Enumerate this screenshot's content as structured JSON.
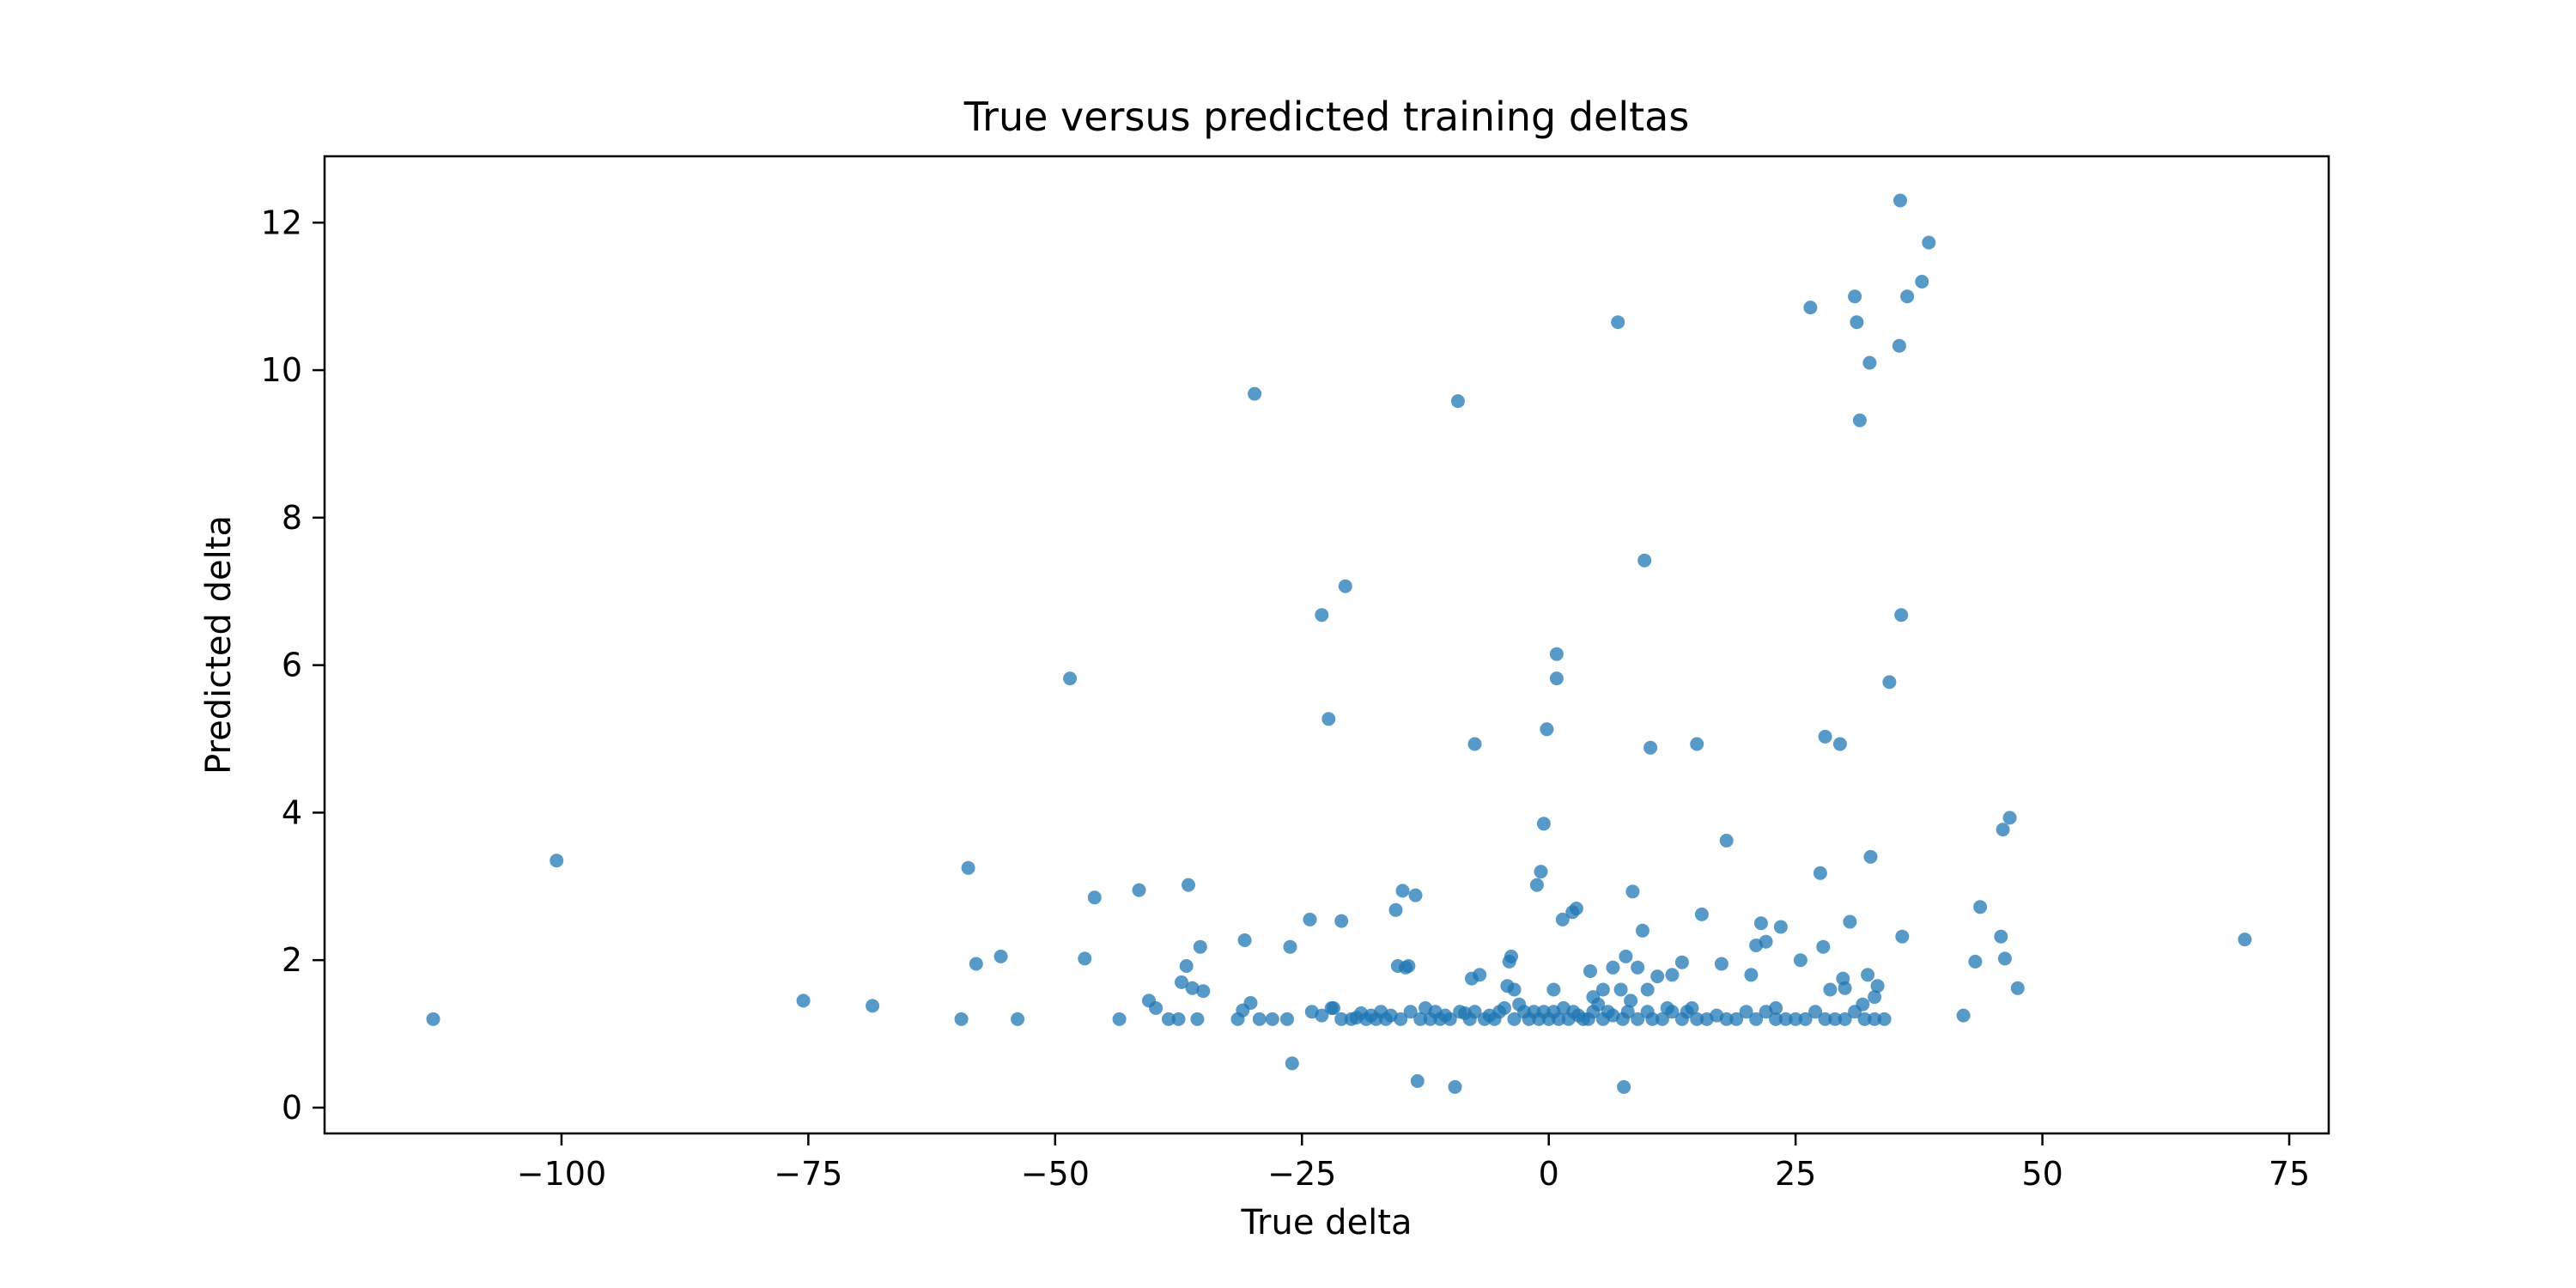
{
  "chart_data": {
    "type": "scatter",
    "title": "True versus predicted training deltas",
    "xlabel": "True delta",
    "ylabel": "Predicted delta",
    "xlim": [
      -124,
      79
    ],
    "ylim": [
      -0.35,
      12.9
    ],
    "x_ticks": [
      -100,
      -75,
      -50,
      -25,
      0,
      25,
      50,
      75
    ],
    "x_tick_labels": [
      "−100",
      "−75",
      "−50",
      "−25",
      "0",
      "25",
      "50",
      "75"
    ],
    "y_ticks": [
      0,
      2,
      4,
      6,
      8,
      10,
      12
    ],
    "y_tick_labels": [
      "0",
      "2",
      "4",
      "6",
      "8",
      "10",
      "12"
    ],
    "grid": false,
    "legend": "none",
    "marker_color": "#1f77b4",
    "marker_alpha": 0.75,
    "series": [
      {
        "points": [
          [
            -113,
            1.2
          ],
          [
            -100.5,
            3.35
          ],
          [
            -75.5,
            1.45
          ],
          [
            -68.5,
            1.38
          ],
          [
            -59.5,
            1.2
          ],
          [
            -58.8,
            3.25
          ],
          [
            -58,
            1.95
          ],
          [
            -55.5,
            2.05
          ],
          [
            -53.8,
            1.2
          ],
          [
            -48.5,
            5.82
          ],
          [
            -47,
            2.02
          ],
          [
            -46,
            2.85
          ],
          [
            -43.5,
            1.2
          ],
          [
            -41.5,
            2.95
          ],
          [
            -40.5,
            1.45
          ],
          [
            -39.8,
            1.35
          ],
          [
            -38.5,
            1.2
          ],
          [
            -37.5,
            1.2
          ],
          [
            -37.2,
            1.7
          ],
          [
            -36.7,
            1.92
          ],
          [
            -36.5,
            3.02
          ],
          [
            -36.1,
            1.62
          ],
          [
            -35.6,
            1.2
          ],
          [
            -35.3,
            2.18
          ],
          [
            -35,
            1.58
          ],
          [
            -31.5,
            1.2
          ],
          [
            -31,
            1.32
          ],
          [
            -30.8,
            2.27
          ],
          [
            -30.2,
            1.42
          ],
          [
            -29.8,
            9.68
          ],
          [
            -29.3,
            1.2
          ],
          [
            -28,
            1.2
          ],
          [
            -26.5,
            1.2
          ],
          [
            -26.2,
            2.18
          ],
          [
            -26,
            0.6
          ],
          [
            -24.2,
            2.55
          ],
          [
            -23,
            6.68
          ],
          [
            -22.3,
            5.27
          ],
          [
            -21.8,
            1.35
          ],
          [
            -21,
            2.53
          ],
          [
            -20.6,
            7.07
          ],
          [
            -18,
            1.25
          ],
          [
            -15.5,
            2.68
          ],
          [
            -15.3,
            1.92
          ],
          [
            -14.8,
            2.94
          ],
          [
            -14.5,
            1.9
          ],
          [
            -14.2,
            1.92
          ],
          [
            -13.5,
            2.88
          ],
          [
            -13.3,
            0.36
          ],
          [
            -12.5,
            1.35
          ],
          [
            -10.5,
            1.25
          ],
          [
            -9.5,
            0.28
          ],
          [
            -9.2,
            9.58
          ],
          [
            -8.5,
            1.28
          ],
          [
            -7.8,
            1.75
          ],
          [
            -7.5,
            4.93
          ],
          [
            -7,
            1.8
          ],
          [
            -5,
            1.3
          ],
          [
            -4.2,
            1.65
          ],
          [
            -4,
            1.98
          ],
          [
            -3.8,
            2.05
          ],
          [
            -3.5,
            1.6
          ],
          [
            -3,
            1.4
          ],
          [
            -1.5,
            1.3
          ],
          [
            -1.2,
            3.02
          ],
          [
            -0.8,
            3.2
          ],
          [
            -0.5,
            3.85
          ],
          [
            -0.2,
            5.13
          ],
          [
            0.5,
            1.6
          ],
          [
            0.8,
            5.82
          ],
          [
            0.8,
            6.15
          ],
          [
            1.4,
            2.55
          ],
          [
            2.4,
            2.65
          ],
          [
            2.8,
            2.7
          ],
          [
            3.5,
            1.2
          ],
          [
            4.2,
            1.85
          ],
          [
            4.5,
            1.5
          ],
          [
            5,
            1.4
          ],
          [
            5.5,
            1.6
          ],
          [
            6,
            1.3
          ],
          [
            6.5,
            1.9
          ],
          [
            7,
            10.65
          ],
          [
            7.3,
            1.6
          ],
          [
            7.6,
            0.28
          ],
          [
            7.8,
            2.05
          ],
          [
            8.3,
            1.45
          ],
          [
            8.5,
            2.93
          ],
          [
            9,
            1.9
          ],
          [
            9.5,
            2.4
          ],
          [
            9.7,
            7.42
          ],
          [
            10,
            1.6
          ],
          [
            10.3,
            4.88
          ],
          [
            11,
            1.78
          ],
          [
            12,
            1.35
          ],
          [
            12.5,
            1.8
          ],
          [
            13.5,
            1.97
          ],
          [
            14.5,
            1.35
          ],
          [
            15,
            4.93
          ],
          [
            15.5,
            2.62
          ],
          [
            17.5,
            1.95
          ],
          [
            18,
            3.62
          ],
          [
            20.5,
            1.8
          ],
          [
            21,
            2.2
          ],
          [
            21.5,
            2.5
          ],
          [
            22,
            2.25
          ],
          [
            23,
            1.35
          ],
          [
            23.5,
            2.45
          ],
          [
            25.5,
            2.0
          ],
          [
            26.5,
            10.85
          ],
          [
            27.5,
            3.18
          ],
          [
            27.8,
            2.18
          ],
          [
            28,
            5.03
          ],
          [
            28.5,
            1.6
          ],
          [
            29,
            1.2
          ],
          [
            29.5,
            4.93
          ],
          [
            29.8,
            1.75
          ],
          [
            30,
            1.62
          ],
          [
            30.5,
            2.52
          ],
          [
            31,
            11.0
          ],
          [
            31.2,
            10.65
          ],
          [
            31.5,
            9.32
          ],
          [
            31.8,
            1.4
          ],
          [
            32.3,
            1.8
          ],
          [
            32.5,
            10.1
          ],
          [
            32.6,
            3.4
          ],
          [
            33,
            1.5
          ],
          [
            33.3,
            1.65
          ],
          [
            34.5,
            5.77
          ],
          [
            35.5,
            10.33
          ],
          [
            35.6,
            12.3
          ],
          [
            35.7,
            6.68
          ],
          [
            35.8,
            2.32
          ],
          [
            36.3,
            11.0
          ],
          [
            37.8,
            11.2
          ],
          [
            38.5,
            11.73
          ],
          [
            42,
            1.25
          ],
          [
            43.2,
            1.98
          ],
          [
            43.7,
            2.72
          ],
          [
            45.8,
            2.32
          ],
          [
            46,
            3.77
          ],
          [
            46.2,
            2.02
          ],
          [
            46.7,
            3.93
          ],
          [
            47.5,
            1.62
          ],
          [
            70.5,
            2.28
          ]
        ],
        "dense_band_y": [
          1.2,
          1.2,
          1.2,
          1.2,
          1.2,
          1.3
        ],
        "dense_band_x": [
          [
            -24,
            1.3
          ],
          [
            -23,
            1.25
          ],
          [
            -22,
            1.35
          ],
          [
            -21,
            1.2
          ],
          [
            -20,
            1.2
          ],
          [
            -19.5,
            1.22
          ],
          [
            -19,
            1.28
          ],
          [
            -18.5,
            1.2
          ],
          [
            -17.5,
            1.2
          ],
          [
            -17,
            1.3
          ],
          [
            -16.5,
            1.2
          ],
          [
            -16,
            1.25
          ],
          [
            -15,
            1.2
          ],
          [
            -14,
            1.3
          ],
          [
            -13,
            1.2
          ],
          [
            -12,
            1.2
          ],
          [
            -11.5,
            1.3
          ],
          [
            -11,
            1.2
          ],
          [
            -10,
            1.2
          ],
          [
            -9,
            1.3
          ],
          [
            -8,
            1.2
          ],
          [
            -7.5,
            1.3
          ],
          [
            -6.5,
            1.2
          ],
          [
            -6,
            1.25
          ],
          [
            -5.5,
            1.2
          ],
          [
            -4.5,
            1.35
          ],
          [
            -3.5,
            1.2
          ],
          [
            -2.5,
            1.3
          ],
          [
            -2,
            1.2
          ],
          [
            -1,
            1.2
          ],
          [
            -0.5,
            1.3
          ],
          [
            0,
            1.2
          ],
          [
            0.5,
            1.3
          ],
          [
            1,
            1.2
          ],
          [
            1.5,
            1.35
          ],
          [
            2,
            1.2
          ],
          [
            2.5,
            1.3
          ],
          [
            3,
            1.25
          ],
          [
            4,
            1.2
          ],
          [
            4.5,
            1.3
          ],
          [
            5.5,
            1.2
          ],
          [
            6.5,
            1.25
          ],
          [
            7.5,
            1.2
          ],
          [
            8,
            1.3
          ],
          [
            9,
            1.2
          ],
          [
            10,
            1.3
          ],
          [
            10.5,
            1.2
          ],
          [
            11.5,
            1.2
          ],
          [
            12.5,
            1.3
          ],
          [
            13.5,
            1.2
          ],
          [
            14,
            1.3
          ],
          [
            15,
            1.2
          ],
          [
            16,
            1.2
          ],
          [
            17,
            1.25
          ],
          [
            18,
            1.2
          ],
          [
            19,
            1.2
          ],
          [
            20,
            1.3
          ],
          [
            21,
            1.2
          ],
          [
            22,
            1.3
          ],
          [
            23,
            1.2
          ],
          [
            24,
            1.2
          ],
          [
            25,
            1.2
          ],
          [
            26,
            1.2
          ],
          [
            27,
            1.3
          ],
          [
            28,
            1.2
          ],
          [
            30,
            1.2
          ],
          [
            31,
            1.3
          ],
          [
            32,
            1.2
          ],
          [
            33,
            1.2
          ],
          [
            34,
            1.2
          ]
        ]
      }
    ]
  }
}
